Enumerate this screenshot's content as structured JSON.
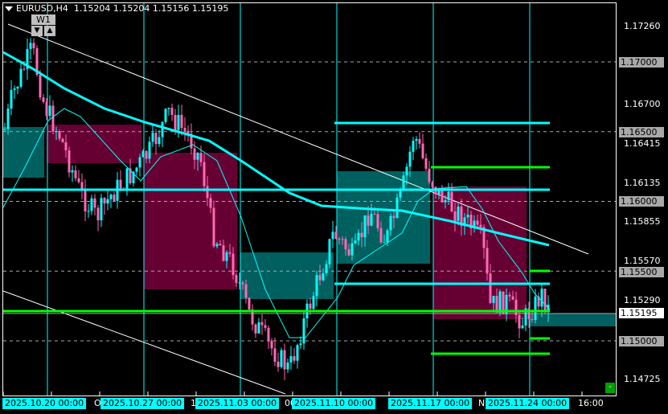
{
  "header": {
    "symbol": "EURUSD,H4",
    "open": "1.15204",
    "high": "1.15204",
    "low": "1.15156",
    "close": "1.15195"
  },
  "controls": {
    "period_label": "W1",
    "down_label": "▼",
    "up_label": "▲",
    "minimize_label": "-"
  },
  "price_axis": {
    "ticks": [
      "1.17260",
      "1.16700",
      "1.16415",
      "1.16135",
      "1.15855",
      "1.15570",
      "1.15290",
      "1.14725"
    ],
    "level_labels": [
      "1.17000",
      "1.16500",
      "1.16000",
      "1.15500",
      "1.15000"
    ],
    "current_price": "1.15195"
  },
  "time_axis": {
    "labels": [
      "2025.10.20 00:00",
      "2025.10.27 00:00",
      "2025.11.03 00:00",
      "2025.11.10 00:00",
      "2025.11.17 00:00",
      "2025.11.24 00:00"
    ],
    "partial_labels": [
      "O",
      "1",
      "00",
      "N"
    ],
    "last_label": "16:00"
  },
  "colors": {
    "bull": "#00ffff",
    "bear": "#ff69b4",
    "demand_zone": "#005f5f",
    "supply_zone": "#660033",
    "level_line": "#00ffff",
    "support_line": "#00ff00",
    "trendline": "#ffffff",
    "background": "#000000"
  },
  "chart_data": {
    "type": "candlestick",
    "symbol": "EURUSD",
    "timeframe": "H4",
    "ylim": [
      1.1445,
      1.1745
    ],
    "approx_close_path": [
      1.1646,
      1.1675,
      1.171,
      1.1669,
      1.1646,
      1.1606,
      1.1589,
      1.1606,
      1.162,
      1.1635,
      1.1664,
      1.1646,
      1.1629,
      1.1577,
      1.1554,
      1.152,
      1.1497,
      1.148,
      1.1509,
      1.1543,
      1.1577,
      1.156,
      1.1594,
      1.1571,
      1.1606,
      1.1649,
      1.1623,
      1.1606,
      1.1594,
      1.1583,
      1.1571,
      1.1525,
      1.1528,
      1.1514,
      1.1525,
      1.1534,
      1.1519
    ],
    "horizontal_levels": [
      1.165,
      1.16,
      1.155,
      1.15,
      1.17,
      1.1661,
      1.1632,
      1.1564,
      1.152,
      1.1555,
      1.1506,
      1.1495
    ]
  }
}
